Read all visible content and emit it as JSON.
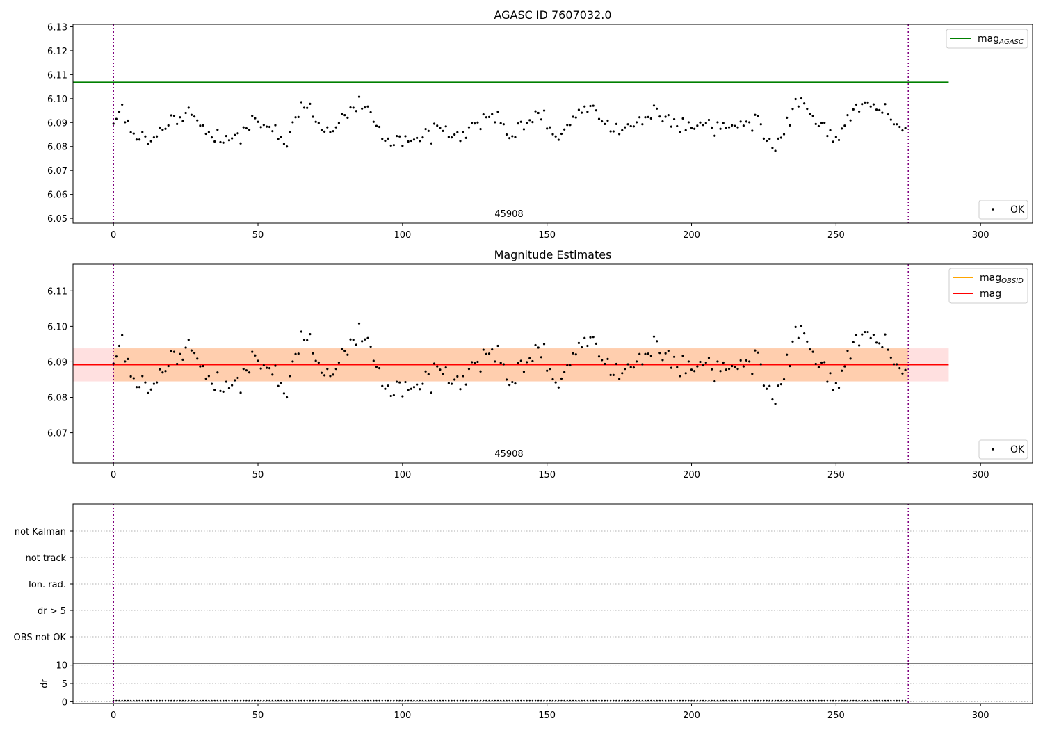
{
  "chart_data": [
    {
      "type": "scatter",
      "title": "AGASC ID 7607032.0",
      "xlim": [
        -14,
        318
      ],
      "ylim": [
        6.048,
        6.131
      ],
      "xticks": [
        "0",
        "50",
        "100",
        "150",
        "200",
        "250",
        "300"
      ],
      "yticks": [
        "6.05",
        "6.06",
        "6.07",
        "6.08",
        "6.09",
        "6.10",
        "6.11",
        "6.12",
        "6.13"
      ],
      "obsid_annotation": "45908",
      "obs_bounds": [
        0,
        275
      ],
      "series": [
        {
          "name": "mag",
          "subscript": "AGASC",
          "kind": "line",
          "color": "#008000",
          "y": 6.1068,
          "x_range": [
            -14,
            289
          ]
        },
        {
          "name": "OK",
          "kind": "points",
          "color": "#000000"
        }
      ],
      "legend": [
        "top-right",
        "bottom-right"
      ]
    },
    {
      "type": "scatter",
      "title": "Magnitude Estimates",
      "xlim": [
        -14,
        318
      ],
      "ylim": [
        6.0615,
        6.1175
      ],
      "xticks": [
        "0",
        "50",
        "100",
        "150",
        "200",
        "250",
        "300"
      ],
      "yticks": [
        "6.07",
        "6.08",
        "6.09",
        "6.10",
        "6.11"
      ],
      "obsid_annotation": "45908",
      "obs_bounds": [
        0,
        275
      ],
      "series": [
        {
          "name": "mag",
          "subscript": "OBSID",
          "kind": "line",
          "color": "#ffa500",
          "y": 6.0892,
          "band": [
            6.0845,
            6.0938
          ],
          "x_range": [
            0,
            275
          ]
        },
        {
          "name": "mag",
          "kind": "line",
          "color": "#ff0000",
          "y": 6.0892,
          "band": [
            6.0845,
            6.0938
          ],
          "x_range": [
            -14,
            289
          ]
        },
        {
          "name": "OK",
          "kind": "points",
          "color": "#000000"
        }
      ],
      "legend": [
        "top-right",
        "bottom-right"
      ]
    },
    {
      "type": "scatter",
      "title": "",
      "categories": [
        "not Kalman",
        "not track",
        "Ion. rad.",
        "dr > 5",
        "OBS not OK"
      ],
      "xlim": [
        -14,
        318
      ],
      "obs_bounds": [
        0,
        275
      ],
      "flags_shown": 0
    },
    {
      "type": "scatter",
      "title": "",
      "ylabel": "dr",
      "xlim": [
        -14,
        318
      ],
      "ylim": [
        -0.5,
        10.5
      ],
      "xticks": [
        "0",
        "50",
        "100",
        "150",
        "200",
        "250",
        "300"
      ],
      "yticks": [
        "0",
        "5",
        "10"
      ],
      "obs_bounds": [
        0,
        275
      ],
      "dr_typical": 0.25
    }
  ],
  "mag_points": [
    6.0895,
    6.0915,
    6.0945,
    6.0975,
    6.0901,
    6.0908,
    6.0859,
    6.0854,
    6.0829,
    6.0829,
    6.086,
    6.0842,
    6.0812,
    6.0822,
    6.0838,
    6.0842,
    6.0879,
    6.087,
    6.0874,
    6.0888,
    6.093,
    6.0928,
    6.0894,
    6.0922,
    6.0906,
    6.094,
    6.0962,
    6.0932,
    6.0925,
    6.0909,
    6.0887,
    6.0888,
    6.0853,
    6.086,
    6.0838,
    6.0821,
    6.087,
    6.0818,
    6.0816,
    6.0844,
    6.0826,
    6.0834,
    6.0848,
    6.0855,
    6.0813,
    6.088,
    6.0876,
    6.087,
    6.0928,
    6.0918,
    6.0903,
    6.0881,
    6.089,
    6.0883,
    6.0882,
    6.0864,
    6.0889,
    6.0832,
    6.084,
    6.0811,
    6.08,
    6.086,
    6.0901,
    6.0922,
    6.0923,
    6.0985,
    6.0962,
    6.0961,
    6.0978,
    6.0924,
    6.0903,
    6.0898,
    6.0869,
    6.0862,
    6.088,
    6.086,
    6.0864,
    6.088,
    6.0898,
    6.0936,
    6.0931,
    6.092,
    6.0963,
    6.0962,
    6.0948,
    6.1008,
    6.0958,
    6.0963,
    6.0967,
    6.0943,
    6.0903,
    6.0886,
    6.0882,
    6.0832,
    6.0824,
    6.0833,
    6.0804,
    6.0806,
    6.0844,
    6.0842,
    6.0803,
    6.0843,
    6.0821,
    6.0824,
    6.0829,
    6.0836,
    6.0823,
    6.0838,
    6.0873,
    6.0865,
    6.0813,
    6.0895,
    6.0887,
    6.0878,
    6.0865,
    6.0884,
    6.084,
    6.0838,
    6.085,
    6.0859,
    6.0823,
    6.086,
    6.0836,
    6.088,
    6.0899,
    6.0896,
    6.09,
    6.0873,
    6.0934,
    6.0922,
    6.0923,
    6.0935,
    6.0901,
    6.0945,
    6.0897,
    6.0893,
    6.085,
    6.0835,
    6.0843,
    6.0839,
    6.0896,
    6.0903,
    6.0872,
    6.0899,
    6.091,
    6.0902,
    6.0947,
    6.094,
    6.0913,
    6.095,
    6.0875,
    6.088,
    6.0851,
    6.0842,
    6.0828,
    6.0853,
    6.0871,
    6.089,
    6.089,
    6.0924,
    6.0921,
    6.0953,
    6.0941,
    6.0967,
    6.0945,
    6.0969,
    6.097,
    6.0951,
    6.0915,
    6.0905,
    6.0894,
    6.0908,
    6.0863,
    6.0863,
    6.0894,
    6.0852,
    6.0868,
    6.088,
    6.0893,
    6.0885,
    6.0884,
    6.0901,
    6.0922,
    6.0893,
    6.0922,
    6.0923,
    6.0917,
    6.0971,
    6.0958,
    6.0925,
    6.0905,
    6.0924,
    6.0931,
    6.0883,
    6.0914,
    6.0885,
    6.086,
    6.0917,
    6.0868,
    6.0901,
    6.0878,
    6.0874,
    6.0887,
    6.09,
    6.089,
    6.0898,
    6.0911,
    6.0879,
    6.0845,
    6.0901,
    6.0874,
    6.0898,
    6.0878,
    6.088,
    6.0888,
    6.0886,
    6.088,
    6.0904,
    6.0887,
    6.0904,
    6.0901,
    6.0866,
    6.0932,
    6.0926,
    6.0893,
    6.0833,
    6.0824,
    6.0832,
    6.0794,
    6.0782,
    6.0833,
    6.0837,
    6.0851,
    6.092,
    6.0888,
    6.0957,
    6.0998,
    6.0967,
    6.1001,
    6.098,
    6.0957,
    6.0935,
    6.0928,
    6.0894,
    6.0885,
    6.0898,
    6.0899,
    6.0844,
    6.0868,
    6.082,
    6.084,
    6.0827,
    6.0875,
    6.0887,
    6.0931,
    6.0909,
    6.0955,
    6.0975,
    6.0946,
    6.0977,
    6.0984,
    6.0984,
    6.0967,
    6.0976,
    6.0954,
    6.0952,
    6.0941,
    6.0977,
    6.0934,
    6.0912,
    6.0893,
    6.0893,
    6.0882,
    6.0867,
    6.0877
  ]
}
